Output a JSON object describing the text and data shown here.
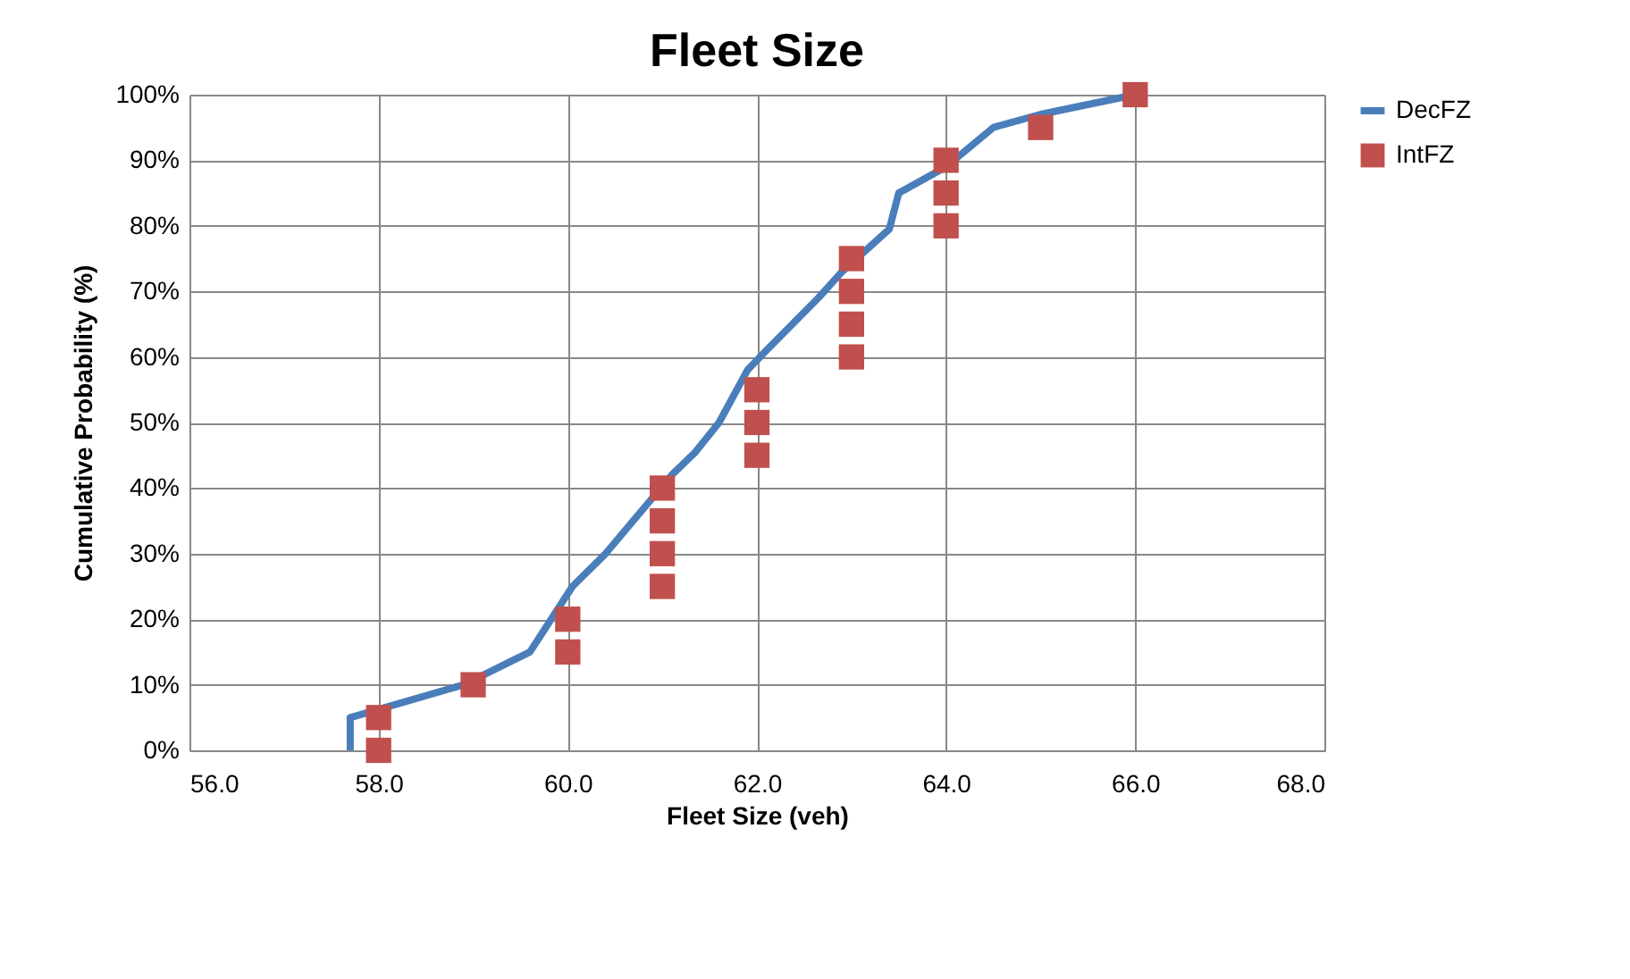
{
  "chart_data": {
    "type": "line",
    "title": "Fleet Size",
    "xlabel": "Fleet Size (veh)",
    "ylabel": "Cumulative Probability (%)",
    "series": [
      {
        "name": "DecFZ",
        "color": "#4a7ebb",
        "x": [
          57.7,
          57.7,
          58.9,
          59.6,
          60.05,
          60.4,
          61.1,
          61.35,
          61.6,
          61.9,
          62.1,
          62.65,
          62.9,
          63.4,
          63.5,
          64.0,
          64.5,
          65.0,
          66.0
        ],
        "values": [
          0,
          5,
          10,
          15,
          25,
          30,
          42,
          45.5,
          50,
          58,
          61,
          69,
          73,
          79.5,
          85,
          89,
          95,
          97,
          100
        ],
        "marker": "none"
      },
      {
        "name": "IntFZ",
        "type": "scatter",
        "color": "#c0504d",
        "marker": "square",
        "x": [
          58,
          58,
          59,
          60,
          60,
          61,
          61,
          61,
          61,
          62,
          62,
          62,
          63,
          63,
          63,
          63,
          64,
          64,
          64,
          65,
          66
        ],
        "values": [
          0,
          5,
          10,
          15,
          20,
          25,
          30,
          35,
          40,
          45,
          50,
          55,
          60,
          65,
          70,
          75,
          80,
          85,
          90,
          95,
          100
        ]
      }
    ],
    "xlim": [
      56,
      68
    ],
    "xticks": [
      {
        "value": 56,
        "label": "56.0"
      },
      {
        "value": 58,
        "label": "58.0"
      },
      {
        "value": 60,
        "label": "60.0"
      },
      {
        "value": 62,
        "label": "62.0"
      },
      {
        "value": 64,
        "label": "64.0"
      },
      {
        "value": 66,
        "label": "66.0"
      },
      {
        "value": 68,
        "label": "68.0"
      }
    ],
    "ylim": [
      0,
      100
    ],
    "yticks": [
      {
        "value": 0,
        "label": "0%"
      },
      {
        "value": 10,
        "label": "10%"
      },
      {
        "value": 20,
        "label": "20%"
      },
      {
        "value": 30,
        "label": "30%"
      },
      {
        "value": 40,
        "label": "40%"
      },
      {
        "value": 50,
        "label": "50%"
      },
      {
        "value": 60,
        "label": "60%"
      },
      {
        "value": 70,
        "label": "70%"
      },
      {
        "value": 80,
        "label": "80%"
      },
      {
        "value": 90,
        "label": "90%"
      },
      {
        "value": 100,
        "label": "100%"
      }
    ],
    "grid": true,
    "legend": "right"
  }
}
